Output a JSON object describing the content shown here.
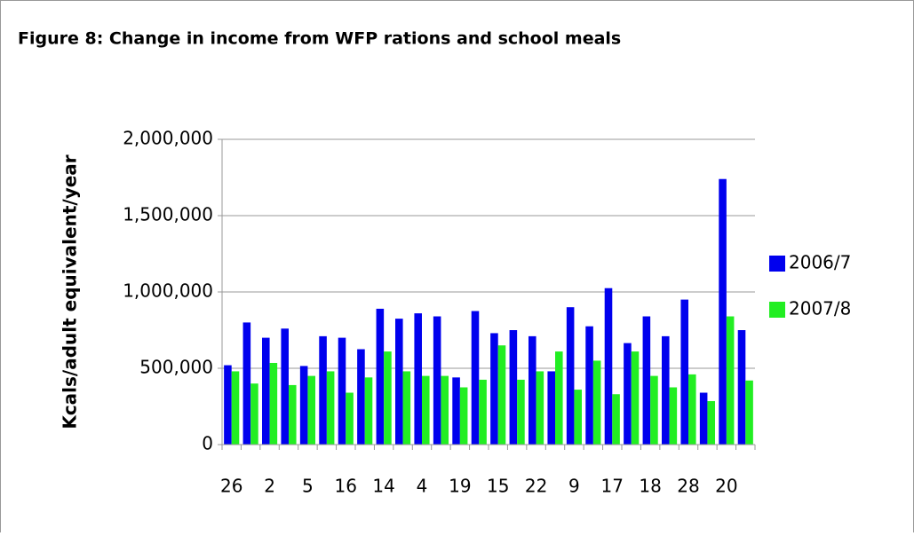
{
  "chart_data": {
    "type": "bar",
    "title": "Figure 8: Change in income from WFP rations and school meals",
    "y_label": "Kcals/adult equivalent/year",
    "categories": [
      "26",
      null,
      "2",
      null,
      "5",
      null,
      "16",
      null,
      "14",
      null,
      "4",
      null,
      "19",
      null,
      "15",
      null,
      "22",
      null,
      "9",
      null,
      "17",
      null,
      "18",
      null,
      "28",
      null,
      "20",
      null
    ],
    "series": [
      {
        "name": "2006/7",
        "color": "#0000ee",
        "values": [
          520000,
          800000,
          700000,
          760000,
          515000,
          710000,
          700000,
          625000,
          890000,
          825000,
          860000,
          840000,
          440000,
          875000,
          730000,
          750000,
          710000,
          480000,
          900000,
          775000,
          1025000,
          665000,
          840000,
          710000,
          950000,
          340000,
          1740000,
          750000
        ]
      },
      {
        "name": "2007/8",
        "color": "#22ee22",
        "values": [
          480000,
          400000,
          535000,
          390000,
          450000,
          480000,
          340000,
          440000,
          610000,
          480000,
          450000,
          450000,
          375000,
          425000,
          650000,
          425000,
          480000,
          610000,
          360000,
          550000,
          330000,
          610000,
          450000,
          375000,
          460000,
          285000,
          840000,
          420000
        ]
      }
    ],
    "ylim": [
      0,
      2000000
    ],
    "yticks": [
      0,
      {
        "value": 500000,
        "label": "500,000"
      },
      {
        "value": 1000000,
        "label": "1,000,000"
      },
      {
        "value": 1500000,
        "label": "1,500,000"
      },
      {
        "value": 2000000,
        "label": "2,000,000"
      }
    ],
    "grid": true,
    "legend": "right"
  }
}
